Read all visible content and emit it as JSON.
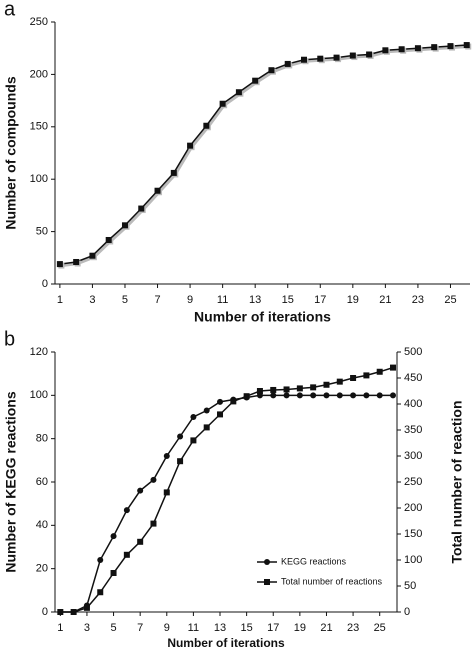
{
  "chart_data": [
    {
      "type": "line",
      "label": "a",
      "xlabel": "Number of iterations",
      "ylabel": "Number of compounds",
      "x": [
        1,
        2,
        3,
        4,
        5,
        6,
        7,
        8,
        9,
        10,
        11,
        12,
        13,
        14,
        15,
        16,
        17,
        18,
        19,
        20,
        21,
        22,
        23,
        24,
        25,
        26
      ],
      "xlim": [
        0.7,
        26.2
      ],
      "xticks": [
        1,
        3,
        5,
        7,
        9,
        11,
        13,
        15,
        17,
        19,
        21,
        23,
        25
      ],
      "ylim": [
        0,
        250
      ],
      "yticks": [
        0,
        50,
        100,
        150,
        200,
        250
      ],
      "series": [
        {
          "color": "#111111",
          "marker": "square",
          "values": [
            19,
            21,
            27,
            42,
            56,
            72,
            89,
            106,
            132,
            151,
            172,
            183,
            194,
            204,
            210,
            214,
            215,
            216,
            218,
            219,
            223,
            224,
            225,
            226,
            227,
            228
          ]
        }
      ]
    },
    {
      "type": "line",
      "label": "b",
      "xlabel": "Number of iterations",
      "ylabel": "Number of KEGG reactions",
      "y2label": "Total number of reaction",
      "x": [
        1,
        2,
        3,
        4,
        5,
        6,
        7,
        8,
        9,
        10,
        11,
        12,
        13,
        14,
        15,
        16,
        17,
        18,
        19,
        20,
        21,
        22,
        23,
        24,
        25,
        26
      ],
      "xlim": [
        0.6,
        26.3
      ],
      "xticks": [
        1,
        3,
        5,
        7,
        9,
        11,
        13,
        15,
        17,
        19,
        21,
        23,
        25
      ],
      "ylim": [
        0,
        120
      ],
      "yticks": [
        0,
        20,
        40,
        60,
        80,
        100,
        120
      ],
      "y2lim": [
        0,
        500
      ],
      "y2ticks": [
        0,
        50,
        100,
        150,
        200,
        250,
        300,
        350,
        400,
        450,
        500
      ],
      "legend": "lower right",
      "series": [
        {
          "name": "KEGG reactions",
          "color": "#111111",
          "marker": "circle",
          "values": [
            0,
            0,
            3,
            24,
            35,
            47,
            56,
            61,
            72,
            81,
            90,
            93,
            97,
            98,
            99,
            100,
            100,
            100,
            100,
            100,
            100,
            100,
            100,
            100,
            100,
            100
          ]
        },
        {
          "name": "Total number of reactions",
          "color": "#111111",
          "marker": "square",
          "axis": "y2",
          "values": [
            0,
            0,
            8,
            38,
            75,
            110,
            135,
            170,
            230,
            290,
            330,
            355,
            380,
            405,
            415,
            425,
            427,
            428,
            430,
            432,
            437,
            443,
            450,
            455,
            462,
            470
          ]
        }
      ]
    }
  ]
}
